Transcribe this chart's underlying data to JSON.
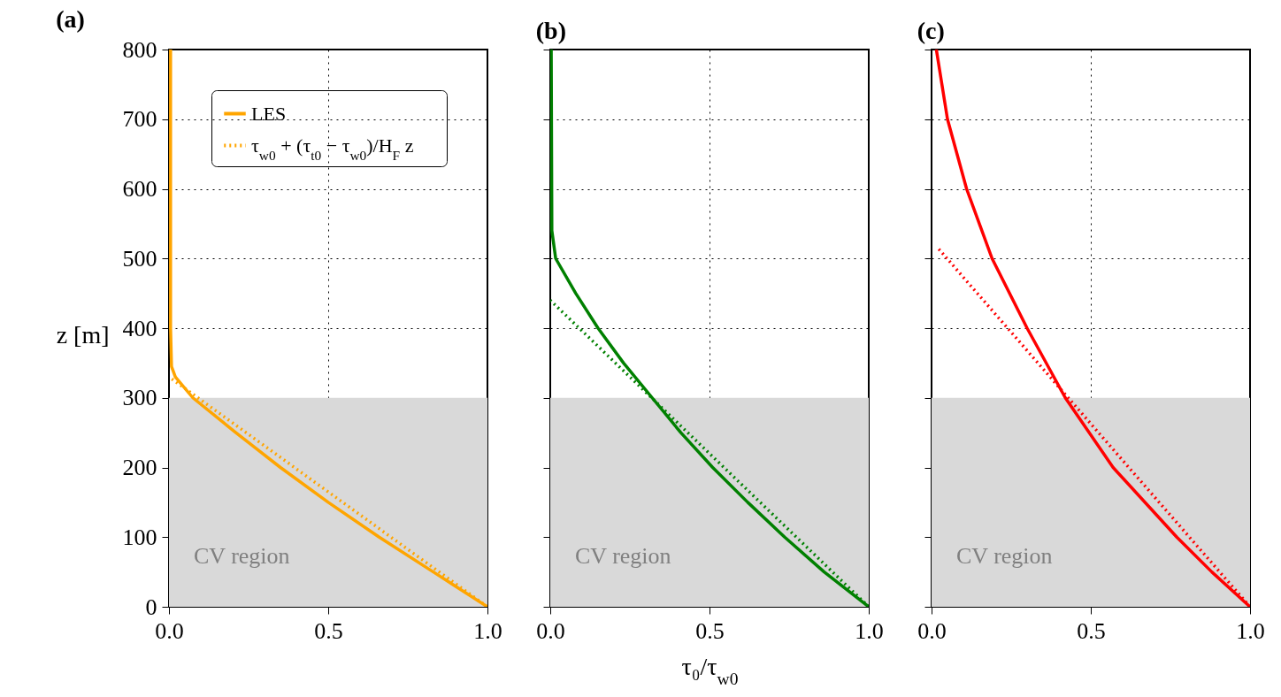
{
  "chart_data": [
    {
      "type": "line",
      "title": "(a)",
      "ylabel": "z [m]",
      "xlim": [
        0,
        1
      ],
      "ylim": [
        0,
        800
      ],
      "xticks": [
        {
          "value": 0,
          "label": "0.0"
        },
        {
          "value": 0.5,
          "label": "0.5"
        },
        {
          "value": 1,
          "label": "1.0"
        }
      ],
      "yticks": [
        0,
        100,
        200,
        300,
        400,
        500,
        600,
        700,
        800
      ],
      "grid": true,
      "legend": "top",
      "bands": [
        {
          "axis": "y",
          "from": 0,
          "to": 300,
          "label": "CV region",
          "color": "#d9d9d9"
        }
      ],
      "series": [
        {
          "name": "LES",
          "color": "#ffa500",
          "line_style": "solid",
          "x": [
            1,
            0.83,
            0.66,
            0.5,
            0.35,
            0.21,
            0.075,
            0.02,
            0.008,
            0.005,
            0.005
          ],
          "values": [
            0,
            50,
            100,
            150,
            200,
            250,
            300,
            330,
            345,
            400,
            800
          ]
        },
        {
          "name": "τ$_{w0}$ + (τ$_{t0}$ − τ$_{w0}$)/H$_{F}$ z",
          "color": "#ffa500",
          "line_style": "dotted",
          "x": [
            1,
            0
          ],
          "values": [
            0,
            330
          ]
        }
      ]
    },
    {
      "type": "line",
      "title": "(b)",
      "xlabel": "τ₀/τ$_{w0}$",
      "xlim": [
        0,
        1
      ],
      "ylim": [
        0,
        800
      ],
      "xticks": [
        {
          "value": 0,
          "label": "0.0"
        },
        {
          "value": 0.5,
          "label": "0.5"
        },
        {
          "value": 1,
          "label": "1.0"
        }
      ],
      "yticks": [
        0,
        100,
        200,
        300,
        400,
        500,
        600,
        700,
        800
      ],
      "grid": true,
      "tick_labels": "x",
      "bands": [
        {
          "axis": "y",
          "from": 0,
          "to": 300,
          "label": "CV region",
          "color": "#d9d9d9"
        }
      ],
      "series": [
        {
          "color": "#008000",
          "line_style": "solid",
          "x": [
            1,
            0.86,
            0.736,
            0.62,
            0.51,
            0.41,
            0.32,
            0.23,
            0.15,
            0.08,
            0.017,
            0.005,
            0.003
          ],
          "values": [
            0,
            50,
            100,
            150,
            200,
            250,
            300,
            350,
            400,
            450,
            500,
            540,
            800
          ]
        },
        {
          "color": "#008000",
          "line_style": "dotted",
          "x": [
            1,
            0
          ],
          "values": [
            0,
            440
          ]
        }
      ]
    },
    {
      "type": "line",
      "title": "(c)",
      "xlim": [
        0,
        1
      ],
      "ylim": [
        0,
        800
      ],
      "xticks": [
        {
          "value": 0,
          "label": "0.0"
        },
        {
          "value": 0.5,
          "label": "0.5"
        },
        {
          "value": 1,
          "label": "1.0"
        }
      ],
      "yticks": [
        0,
        100,
        200,
        300,
        400,
        500,
        600,
        700,
        800
      ],
      "grid": true,
      "tick_labels": "x",
      "bands": [
        {
          "axis": "y",
          "from": 0,
          "to": 300,
          "label": "CV region",
          "color": "#d9d9d9"
        }
      ],
      "series": [
        {
          "color": "#ff0000",
          "line_style": "solid",
          "x": [
            1,
            0.88,
            0.77,
            0.57,
            0.42,
            0.3,
            0.19,
            0.11,
            0.05,
            0.015
          ],
          "values": [
            0,
            50,
            100,
            200,
            300,
            400,
            500,
            600,
            700,
            800
          ]
        },
        {
          "color": "#ff0000",
          "line_style": "dotted",
          "x": [
            1,
            0.02
          ],
          "values": [
            0,
            515
          ]
        }
      ]
    }
  ]
}
